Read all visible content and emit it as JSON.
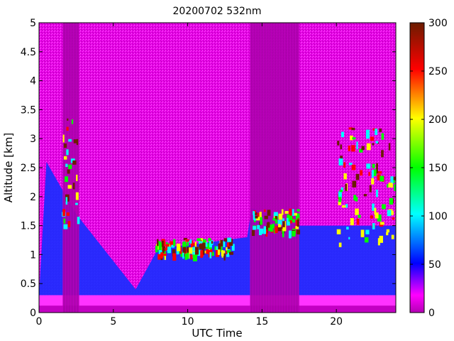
{
  "chart_data": {
    "type": "heatmap",
    "title": "20200702 532nm",
    "xlabel": "UTC Time",
    "ylabel": "Altitude [km]",
    "xlim": [
      0,
      24
    ],
    "ylim": [
      0,
      5
    ],
    "x_ticks": [
      0,
      5,
      10,
      15,
      20
    ],
    "y_ticks": [
      0,
      0.5,
      1,
      1.5,
      2,
      2.5,
      3,
      3.5,
      4,
      4.5,
      5
    ],
    "y_tick_labels": [
      "0",
      "0.5",
      "1",
      "1.5",
      "2",
      "2.5",
      "3",
      "3.5",
      "4",
      "4.5",
      "5"
    ],
    "colorbar": {
      "range": [
        0,
        300
      ],
      "ticks": [
        0,
        50,
        100,
        150,
        200,
        250,
        300
      ],
      "colormap": [
        "#b400b4",
        "#ff00ff",
        "#0000ff",
        "#00ffff",
        "#00ff00",
        "#ffff00",
        "#ff0000",
        "#6b1c00"
      ]
    },
    "features": {
      "surface_layer_top_km": 0.3,
      "boundary_layer_top_km": [
        {
          "x": 0.5,
          "y": 2.6
        },
        {
          "x": 2.5,
          "y": 1.7
        },
        {
          "x": 6.5,
          "y": 0.4
        },
        {
          "x": 8.0,
          "y": 1.1
        },
        {
          "x": 11.0,
          "y": 1.2
        },
        {
          "x": 14.0,
          "y": 1.3
        },
        {
          "x": 14.3,
          "y": 1.8
        },
        {
          "x": 17.5,
          "y": 1.5
        },
        {
          "x": 20.5,
          "y": 1.5
        },
        {
          "x": 24.0,
          "y": 1.5
        }
      ],
      "cloud_regions": [
        {
          "x_start": 1.5,
          "x_end": 2.7,
          "y_bottom": 1.5,
          "y_top": 3.4
        },
        {
          "x_start": 7.8,
          "x_end": 13.0,
          "y_bottom": 1.0,
          "y_top": 1.3
        },
        {
          "x_start": 14.3,
          "x_end": 17.4,
          "y_bottom": 1.4,
          "y_top": 1.8
        },
        {
          "x_start": 20.0,
          "x_end": 24.0,
          "y_bottom": 1.2,
          "y_top": 3.2
        }
      ],
      "no_data_gaps": [
        {
          "x_start": 14.2,
          "x_end": 17.5
        },
        {
          "x_start": 1.6,
          "x_end": 2.7
        }
      ]
    }
  }
}
